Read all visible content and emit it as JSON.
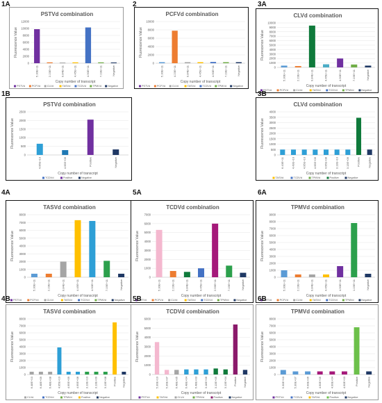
{
  "figure": {
    "panel_labels": [
      "1A",
      "2",
      "3A",
      "1B",
      "3B",
      "4A",
      "5A",
      "6A",
      "4B",
      "5B",
      "6B"
    ]
  },
  "chart_data": [
    {
      "id": "1A",
      "type": "bar",
      "title": "PSTVd combination",
      "ylabel": "Fluorescence Value",
      "xlabel": "Copy number of transcript",
      "ylim": [
        0,
        12000
      ],
      "yticks": [
        0,
        2000,
        4000,
        6000,
        8000,
        10000,
        12000
      ],
      "categories": [
        "5.30E+11",
        "2.23E+11",
        "9.84E+11",
        "4.45E+11",
        "4.90E+11",
        "7.19E+11",
        "Negative"
      ],
      "values": [
        9800,
        250,
        200,
        250,
        10300,
        250,
        220
      ],
      "colors": [
        "#7030a0",
        "#ed7d31",
        "#a5a5a5",
        "#ffc000",
        "#4472c4",
        "#70ad47",
        "#1f3864"
      ],
      "legend": [
        "PSTVd",
        "PCFVd",
        "CLVd",
        "TASVd",
        "TCDVd",
        "TPMVd",
        "Negative"
      ]
    },
    {
      "id": "2",
      "type": "bar",
      "title": "PCFVd combination",
      "ylabel": "Fluorescence Value",
      "xlabel": "Copy number of transcript",
      "ylim": [
        0,
        10000
      ],
      "yticks": [
        0,
        2000,
        4000,
        6000,
        8000,
        10000
      ],
      "categories": [
        "5.30E+11",
        "4.23E+11",
        "9.84E+11",
        "4.45E+11",
        "4.90E+11",
        "7.19E+11",
        "Negative"
      ],
      "values": [
        250,
        7800,
        250,
        250,
        300,
        250,
        250
      ],
      "colors": [
        "#5b9bd5",
        "#ed7d31",
        "#a5a5a5",
        "#ffc000",
        "#4472c4",
        "#70ad47",
        "#1f3864"
      ],
      "legend": [
        "PSTVd",
        "PCFVd",
        "CLVd",
        "TASVd",
        "TCDVd",
        "TPMVd",
        "Negative"
      ]
    },
    {
      "id": "3A",
      "type": "bar",
      "title": "CLVd combination",
      "ylabel": "Fluorescence Value",
      "xlabel": "Copy number of transcript",
      "ylim": [
        0,
        10000
      ],
      "yticks": [
        0,
        1000,
        2000,
        3000,
        4000,
        5000,
        6000,
        7000,
        8000,
        9000,
        10000
      ],
      "categories": [
        "5.30E+11",
        "2.23E+11",
        "9.84E+11",
        "4.45E+11",
        "4.90E+11",
        "7.19E+11",
        "Negative"
      ],
      "values": [
        400,
        300,
        9400,
        700,
        2000,
        650,
        400
      ],
      "colors": [
        "#5b9bd5",
        "#ed7d31",
        "#0f7a3b",
        "#4bacc6",
        "#7030a0",
        "#70ad47",
        "#1f3864"
      ],
      "legend": [
        "PSTVd",
        "PCFVd",
        "CLVd",
        "TASVd",
        "TCDVd",
        "TPMVd",
        "Negative"
      ]
    },
    {
      "id": "1B",
      "type": "bar",
      "title": "PSTVd combination",
      "ylabel": "Fluorescence Value",
      "xlabel": "Copy number of transcript",
      "ylim": [
        0,
        2500
      ],
      "yticks": [
        0,
        500,
        1000,
        1500,
        2000,
        2500
      ],
      "categories": [
        "4.95E+10",
        "4.95E+09",
        "Positive",
        "Negative"
      ],
      "values": [
        650,
        280,
        2050,
        320
      ],
      "colors": [
        "#2e9fd6",
        "#1f78b4",
        "#7030a0",
        "#1f3864"
      ],
      "legend": [
        "TCDVd",
        "Positive",
        "Negative"
      ]
    },
    {
      "id": "3B",
      "type": "bar",
      "title": "CLVd combination",
      "ylabel": "Fluorescence Value",
      "xlabel": "Copy number of transcript",
      "ylim": [
        0,
        4000
      ],
      "yticks": [
        0,
        500,
        1000,
        1500,
        2000,
        2500,
        3000,
        3500,
        4000
      ],
      "categories": [
        "6.43E+11",
        "4.43E+10",
        "4.95E+10",
        "4.95E+09",
        "4.95E+08",
        "3.13E+10",
        "3.13E+09",
        "Positive",
        "Negative"
      ],
      "values": [
        500,
        500,
        500,
        500,
        500,
        500,
        500,
        3450,
        500
      ],
      "colors": [
        "#2e9fd6",
        "#2e9fd6",
        "#2e9fd6",
        "#2e9fd6",
        "#2e9fd6",
        "#2e9fd6",
        "#2e9fd6",
        "#0f7a3b",
        "#1f3864"
      ],
      "legend": [
        "TASVd",
        "TCDVd",
        "TPMVd",
        "Positive",
        "Negative"
      ]
    },
    {
      "id": "4A",
      "type": "bar",
      "title": "TASVd combination",
      "ylabel": "Fluorescence Value",
      "xlabel": "Copy number of transcript",
      "ylim": [
        0,
        8000
      ],
      "yticks": [
        0,
        1000,
        2000,
        3000,
        4000,
        5000,
        6000,
        7000,
        8000
      ],
      "categories": [
        "5.30E+11",
        "2.23E+11",
        "9.84E+11",
        "4.45E+11",
        "4.90E+11",
        "7.19E+11",
        "Negative"
      ],
      "values": [
        450,
        450,
        2000,
        7300,
        7200,
        2100,
        450
      ],
      "colors": [
        "#5b9bd5",
        "#ed7d31",
        "#a5a5a5",
        "#ffc000",
        "#2e9fd6",
        "#2ca04c",
        "#1f3864"
      ],
      "legend": [
        "PSTVd",
        "PCFVd",
        "CLVd",
        "TASVd",
        "TCDVd",
        "TPMVd",
        "Negative"
      ]
    },
    {
      "id": "5A",
      "type": "bar",
      "title": "TCDVd combination",
      "ylabel": "Fluorescence Value",
      "xlabel": "Copy number of transcript",
      "ylim": [
        0,
        7000
      ],
      "yticks": [
        0,
        1000,
        2000,
        3000,
        4000,
        5000,
        6000,
        7000
      ],
      "categories": [
        "5.30E+11",
        "2.23E+11",
        "9.84E+11",
        "4.45E+11",
        "2.56E+11",
        "7.19E+11",
        "Negative"
      ],
      "values": [
        5300,
        700,
        600,
        1000,
        6000,
        1300,
        500
      ],
      "colors": [
        "#f4b8cf",
        "#ed7d31",
        "#0f7a3b",
        "#4472c4",
        "#a5197a",
        "#2ca04c",
        "#1f3864"
      ],
      "legend": [
        "PSTVd",
        "PCFVd",
        "CLVd",
        "TASVd",
        "TCDVd",
        "TPMVd",
        "Negative"
      ]
    },
    {
      "id": "6A",
      "type": "bar",
      "title": "TPMVd combination",
      "ylabel": "Fluorescence Value",
      "xlabel": "Copy number of transcript",
      "ylim": [
        0,
        9000
      ],
      "yticks": [
        0,
        1000,
        2000,
        3000,
        4000,
        5000,
        6000,
        7000,
        8000,
        9000
      ],
      "categories": [
        "5.30E+11",
        "2.23E+11",
        "9.84E+11",
        "4.45E+11",
        "4.90E+11",
        "1.19E+11",
        "Negative"
      ],
      "values": [
        1000,
        400,
        400,
        400,
        1600,
        7800,
        500
      ],
      "colors": [
        "#5b9bd5",
        "#ed7d31",
        "#a5a5a5",
        "#ffc000",
        "#7030a0",
        "#2ca04c",
        "#1f3864"
      ],
      "legend": [
        "PSTVd",
        "PCFVd",
        "CLVd",
        "TASVd",
        "TCDVd",
        "TPMVd",
        "Negative"
      ]
    },
    {
      "id": "4B",
      "type": "bar",
      "title": "TASVd combination",
      "ylabel": "Fluorescence Value",
      "xlabel": "Copy number of transcript",
      "ylim": [
        0,
        8000
      ],
      "yticks": [
        0,
        1000,
        2000,
        3000,
        4000,
        5000,
        6000,
        7000,
        8000
      ],
      "categories": [
        "6.48E+10",
        "6.48E+09",
        "6.48E+08",
        "4.95E+10",
        "4.95E+09",
        "4.95E+08",
        "3.13E+10",
        "3.13E+09",
        "3.13E+08",
        "Positive",
        "Negative"
      ],
      "values": [
        400,
        400,
        400,
        3900,
        400,
        400,
        400,
        400,
        400,
        7500,
        400
      ],
      "colors": [
        "#a5a5a5",
        "#a5a5a5",
        "#a5a5a5",
        "#2e9fd6",
        "#2e9fd6",
        "#2e9fd6",
        "#2ca04c",
        "#2ca04c",
        "#2ca04c",
        "#ffc000",
        "#1f3864"
      ],
      "legend": [
        "CLVd",
        "TCDVd",
        "TPMVd",
        "Positive",
        "Negative"
      ]
    },
    {
      "id": "5B",
      "type": "bar",
      "title": "TCDVd combination",
      "ylabel": "Fluorescence Value",
      "xlabel": "Copy number of transcript",
      "ylim": [
        0,
        6000
      ],
      "yticks": [
        0,
        1000,
        2000,
        3000,
        4000,
        5000,
        6000
      ],
      "categories": [
        "5.30E+10",
        "5.30E+07",
        "6.48E+05",
        "6.48E+04",
        "6.48E+03",
        "3.18E+06",
        "3.13E+05",
        "3.13E+04",
        "Positive",
        "Negative"
      ],
      "values": [
        3500,
        500,
        500,
        550,
        550,
        550,
        650,
        550,
        5400,
        500
      ],
      "colors": [
        "#f4b8cf",
        "#f4b8cf",
        "#a5a5a5",
        "#2e9fd6",
        "#2e9fd6",
        "#2e9fd6",
        "#0f7a3b",
        "#0f7a3b",
        "#8b1a6b",
        "#1f3864"
      ],
      "legend": [
        "PSTVd",
        "TASVd",
        "CLVd",
        "TPMVd",
        "Positive",
        "Negative"
      ]
    },
    {
      "id": "6B",
      "type": "bar",
      "title": "TPMVd combination",
      "ylabel": "Fluorescence Value",
      "xlabel": "Copy number of transcript",
      "ylim": [
        0,
        8000
      ],
      "yticks": [
        0,
        1000,
        2000,
        3000,
        4000,
        5000,
        6000,
        7000,
        8000
      ],
      "categories": [
        "5.30E+10",
        "5.30E+07",
        "6.90E+06",
        "4.90E+05",
        "4.90E+04",
        "4.90E+03",
        "Positive",
        "Negative"
      ],
      "values": [
        650,
        450,
        450,
        450,
        450,
        450,
        6800,
        450
      ],
      "colors": [
        "#5b9bd5",
        "#5b9bd5",
        "#5b9bd5",
        "#a5197a",
        "#a5197a",
        "#a5197a",
        "#6cc04a",
        "#1f3864"
      ],
      "legend": [
        "PSTVd",
        "TCDVd",
        "TASVd",
        "Positive",
        "Negative"
      ]
    }
  ]
}
